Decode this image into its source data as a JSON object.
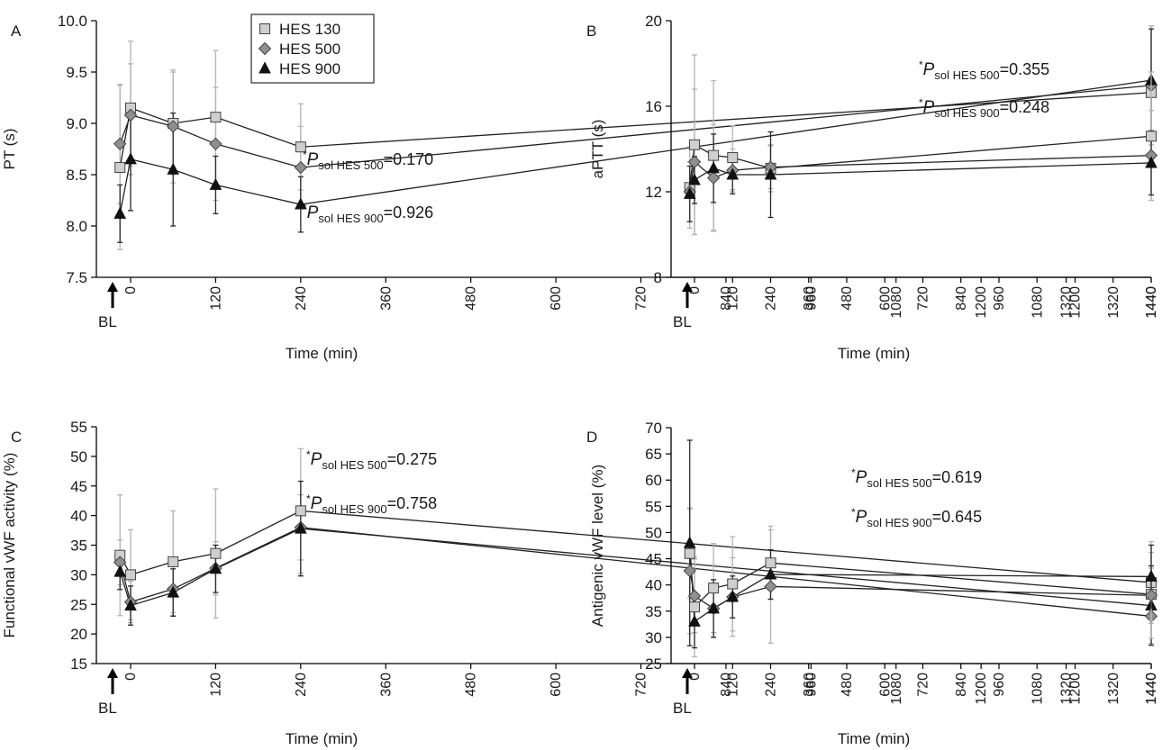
{
  "legend": {
    "entries": [
      {
        "label": "HES 130",
        "marker": "square",
        "fill": "#cfcfcf"
      },
      {
        "label": "HES 500",
        "marker": "diamond",
        "fill": "#8f8f8f"
      },
      {
        "label": "HES 900",
        "marker": "triangle",
        "fill": "#111111"
      }
    ]
  },
  "colors": {
    "line": "#222222",
    "axis": "#000000",
    "errorbar_light": "#b4b4b4",
    "errorbar_dark": "#2a2a2a"
  },
  "chart_data": [
    {
      "panel": "A",
      "type": "line",
      "xlabel": "Time (min)",
      "ylabel": "PT (s)",
      "ylim": [
        7.5,
        10.0
      ],
      "yticks": [
        "7.5",
        "8.0",
        "8.5",
        "9.0",
        "9.5",
        "10.0"
      ],
      "xlim": [
        -60,
        1440
      ],
      "xticks": [
        0,
        120,
        240,
        360,
        480,
        600,
        720,
        840,
        960,
        1080,
        1200,
        1320,
        1440
      ],
      "baseline_label": "BL",
      "annotations": [
        {
          "sup": "*",
          "italic": "P",
          "sub": "sol HES 500",
          "value": "=0.170"
        },
        {
          "sup": "*",
          "italic": "P",
          "sub": "sol HES 900",
          "value": "=0.926"
        }
      ],
      "series": [
        {
          "name": "HES 130",
          "x": [
            -15,
            0,
            60,
            120,
            240,
            1440
          ],
          "y": [
            8.57,
            9.15,
            9.0,
            9.06,
            8.77,
            9.3
          ],
          "err": [
            0.8,
            0.65,
            0.5,
            0.65,
            0.42,
            0.65
          ]
        },
        {
          "name": "HES 500",
          "x": [
            -15,
            0,
            60,
            120,
            240,
            1440
          ],
          "y": [
            8.8,
            9.08,
            8.97,
            8.8,
            8.57,
            9.37
          ],
          "err": [
            0.58,
            0.5,
            0.55,
            0.55,
            0.4,
            0.58
          ]
        },
        {
          "name": "HES 900",
          "x": [
            -15,
            0,
            60,
            120,
            240,
            1440
          ],
          "y": [
            8.12,
            8.65,
            8.55,
            8.4,
            8.21,
            9.42
          ],
          "err": [
            0.28,
            0.5,
            0.55,
            0.28,
            0.27,
            0.5
          ]
        }
      ]
    },
    {
      "panel": "B",
      "type": "line",
      "xlabel": "Time (min)",
      "ylabel": "aPTT (s)",
      "ylim": [
        8,
        20
      ],
      "yticks": [
        "8",
        "12",
        "16",
        "20"
      ],
      "xlim": [
        -60,
        1440
      ],
      "xticks": [
        0,
        120,
        240,
        360,
        480,
        600,
        720,
        840,
        960,
        1080,
        1200,
        1320,
        1440
      ],
      "baseline_label": "BL",
      "annotations": [
        {
          "sup": "*",
          "italic": "P",
          "sub": "sol HES 500",
          "value": "=0.355"
        },
        {
          "sup": "*",
          "italic": "P",
          "sub": "sol HES 900",
          "value": "=0.248"
        }
      ],
      "series": [
        {
          "name": "HES 130",
          "x": [
            -15,
            0,
            60,
            120,
            240,
            1440
          ],
          "y": [
            12.2,
            14.2,
            13.7,
            13.6,
            13.1,
            14.6
          ],
          "err": [
            1.9,
            4.2,
            3.5,
            1.5,
            1.1,
            3.0
          ]
        },
        {
          "name": "HES 500",
          "x": [
            -15,
            0,
            60,
            120,
            240,
            1440
          ],
          "y": [
            12.0,
            13.4,
            12.65,
            13.0,
            13.15,
            13.7
          ],
          "err": [
            1.4,
            3.4,
            2.5,
            1.0,
            1.0,
            2.1
          ]
        },
        {
          "name": "HES 900",
          "x": [
            -15,
            0,
            60,
            120,
            240,
            1440
          ],
          "y": [
            11.9,
            12.55,
            13.1,
            12.8,
            12.8,
            13.35
          ],
          "err": [
            1.3,
            1.1,
            1.6,
            0.9,
            2.0,
            1.5
          ]
        }
      ]
    },
    {
      "panel": "C",
      "type": "line",
      "xlabel": "Time (min)",
      "ylabel": "Functional vWF activity (%)",
      "ylim": [
        15,
        55
      ],
      "yticks": [
        "15",
        "20",
        "25",
        "30",
        "35",
        "40",
        "45",
        "50",
        "55"
      ],
      "xlim": [
        -60,
        1440
      ],
      "xticks": [
        0,
        120,
        240,
        360,
        480,
        600,
        720,
        840,
        960,
        1080,
        1200,
        1320,
        1440
      ],
      "baseline_label": "BL",
      "annotations": [
        {
          "sup": "*",
          "italic": "P",
          "sub": "sol HES 500",
          "value": "=0.275"
        },
        {
          "sup": "*",
          "italic": "P",
          "sub": "sol HES 900",
          "value": "=0.758"
        }
      ],
      "series": [
        {
          "name": "HES 130",
          "x": [
            -15,
            0,
            60,
            120,
            240,
            1440
          ],
          "y": [
            33.3,
            30.0,
            32.2,
            33.6,
            40.8,
            28.7
          ],
          "err": [
            10.2,
            7.6,
            8.6,
            10.9,
            10.5,
            6.9
          ]
        },
        {
          "name": "HES 500",
          "x": [
            -15,
            0,
            60,
            120,
            240,
            1440
          ],
          "y": [
            32.1,
            25.4,
            27.6,
            31.1,
            38.0,
            23.0
          ],
          "err": [
            3.8,
            3.5,
            4.5,
            4.5,
            5.5,
            4.6
          ]
        },
        {
          "name": "HES 900",
          "x": [
            -15,
            0,
            60,
            120,
            240,
            1440
          ],
          "y": [
            30.5,
            24.8,
            27.0,
            31.0,
            37.8,
            24.8
          ],
          "err": [
            3.0,
            3.3,
            4.0,
            4.0,
            8.0,
            6.7
          ]
        }
      ]
    },
    {
      "panel": "D",
      "type": "line",
      "xlabel": "Time (min)",
      "ylabel": "Antigenic vWF level (%)",
      "ylim": [
        25,
        70
      ],
      "yticks": [
        "25",
        "30",
        "35",
        "40",
        "45",
        "50",
        "55",
        "60",
        "65",
        "70"
      ],
      "xlim": [
        -60,
        1440
      ],
      "xticks": [
        0,
        120,
        240,
        360,
        480,
        600,
        720,
        840,
        960,
        1080,
        1200,
        1320,
        1440
      ],
      "baseline_label": "BL",
      "annotations": [
        {
          "sup": "*",
          "italic": "P",
          "sub": "sol HES 500",
          "value": "=0.619"
        },
        {
          "sup": "*",
          "italic": "P",
          "sub": "sol HES 900",
          "value": "=0.645"
        }
      ],
      "series": [
        {
          "name": "HES 130",
          "x": [
            -15,
            0,
            60,
            120,
            240,
            1440
          ],
          "y": [
            46.0,
            35.8,
            39.4,
            40.2,
            44.2,
            38.2
          ],
          "err": [
            8.5,
            9.5,
            8.5,
            9.0,
            7.0,
            5.0
          ]
        },
        {
          "name": "HES 500",
          "x": [
            -15,
            0,
            60,
            120,
            240,
            1440
          ],
          "y": [
            42.7,
            37.9,
            35.5,
            37.7,
            39.7,
            38.0
          ],
          "err": [
            12.0,
            7.0,
            5.5,
            7.5,
            10.8,
            8.2
          ]
        },
        {
          "name": "HES 900",
          "x": [
            -15,
            0,
            60,
            120,
            240,
            1440
          ],
          "y": [
            48.0,
            33.0,
            35.5,
            37.7,
            42.0,
            41.6
          ],
          "err": [
            19.6,
            5.0,
            5.5,
            4.0,
            4.7,
            6.0
          ]
        }
      ]
    }
  ]
}
